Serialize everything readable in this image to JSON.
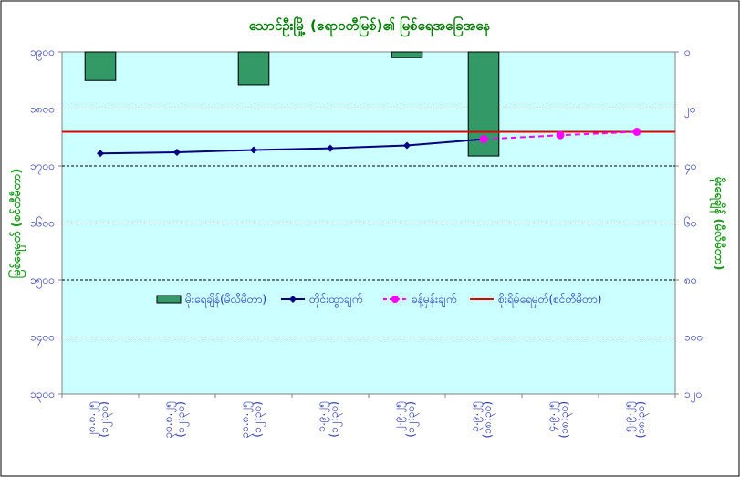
{
  "chart_data": {
    "type": "bar+line",
    "title": "သောင်ဦးမြို့ (ဧရာဝတီမြစ်)၏ မြစ်ရေအခြေအနေ",
    "ylabel_left": "မြစ်ရေမှတ် (စင်တီမီတာ)",
    "ylabel_right": "မိုးရေချိန် (မီလီမီတာ)",
    "left_axis": {
      "min": 1300,
      "max": 1900,
      "ticks": [
        "၁၃၀၀",
        "၁၄၀၀",
        "၁၅၀၀",
        "၁၆၀၀",
        "၁၇၀၀",
        "၁၈၀၀",
        "၁၉၀၀"
      ],
      "tick_values": [
        1300,
        1400,
        1500,
        1600,
        1700,
        1800,
        1900
      ]
    },
    "right_axis": {
      "min": 0,
      "max": 120,
      "inverted": true,
      "ticks": [
        "၀",
        "၂၀",
        "၄၀",
        "၆၀",
        "၈၀",
        "၁၀၀",
        "၁၂၀"
      ],
      "tick_values": [
        0,
        20,
        40,
        60,
        80,
        100,
        120
      ]
    },
    "categories": [
      {
        "date": "၂၈.၈.၂၅",
        "time": "(၁၂:၃၀)"
      },
      {
        "date": "၃၀.၈.၂၅",
        "time": "(၁၂:၃၀)"
      },
      {
        "date": "၃၁.၈.၂၅",
        "time": "(၁၂:၃၀)"
      },
      {
        "date": "၁.၉.၂၅",
        "time": "(၁၂:၃၀)"
      },
      {
        "date": "၂.၉.၂၅",
        "time": "(၁၂:၃၀)"
      },
      {
        "date": "၃.၉.၂၅",
        "time": "(၁၈:၃၀)"
      },
      {
        "date": "၄.၉.၂၅",
        "time": "(၁၈:၃၀)"
      },
      {
        "date": "၅.၉.၂၅",
        "time": "(၁၈:၃၀)"
      }
    ],
    "series": [
      {
        "name": "မိုးရေချိန်(မီလီမီတာ)",
        "type": "bar",
        "axis": "right",
        "color": "#339966",
        "values": [
          10,
          null,
          11.5,
          null,
          2,
          36.5,
          null,
          null
        ]
      },
      {
        "name": "တိုင်းထွာချက်",
        "type": "line",
        "axis": "left",
        "color": "#000080",
        "marker": "diamond",
        "values": [
          1722,
          1724,
          1728,
          1731,
          1736,
          1747,
          null,
          null
        ]
      },
      {
        "name": "ခန့်မှန်းချက်",
        "type": "line",
        "axis": "left",
        "color": "#ff00ff",
        "dashed": true,
        "marker": "circle",
        "values": [
          null,
          null,
          null,
          null,
          null,
          1747,
          1754,
          1760
        ]
      },
      {
        "name": "စိုးရိမ်ရေမှတ်(စင်တီမီတာ)",
        "type": "hline",
        "axis": "left",
        "color": "#e00000",
        "value": 1760
      }
    ],
    "gridlines": true,
    "legend_position": "center"
  }
}
